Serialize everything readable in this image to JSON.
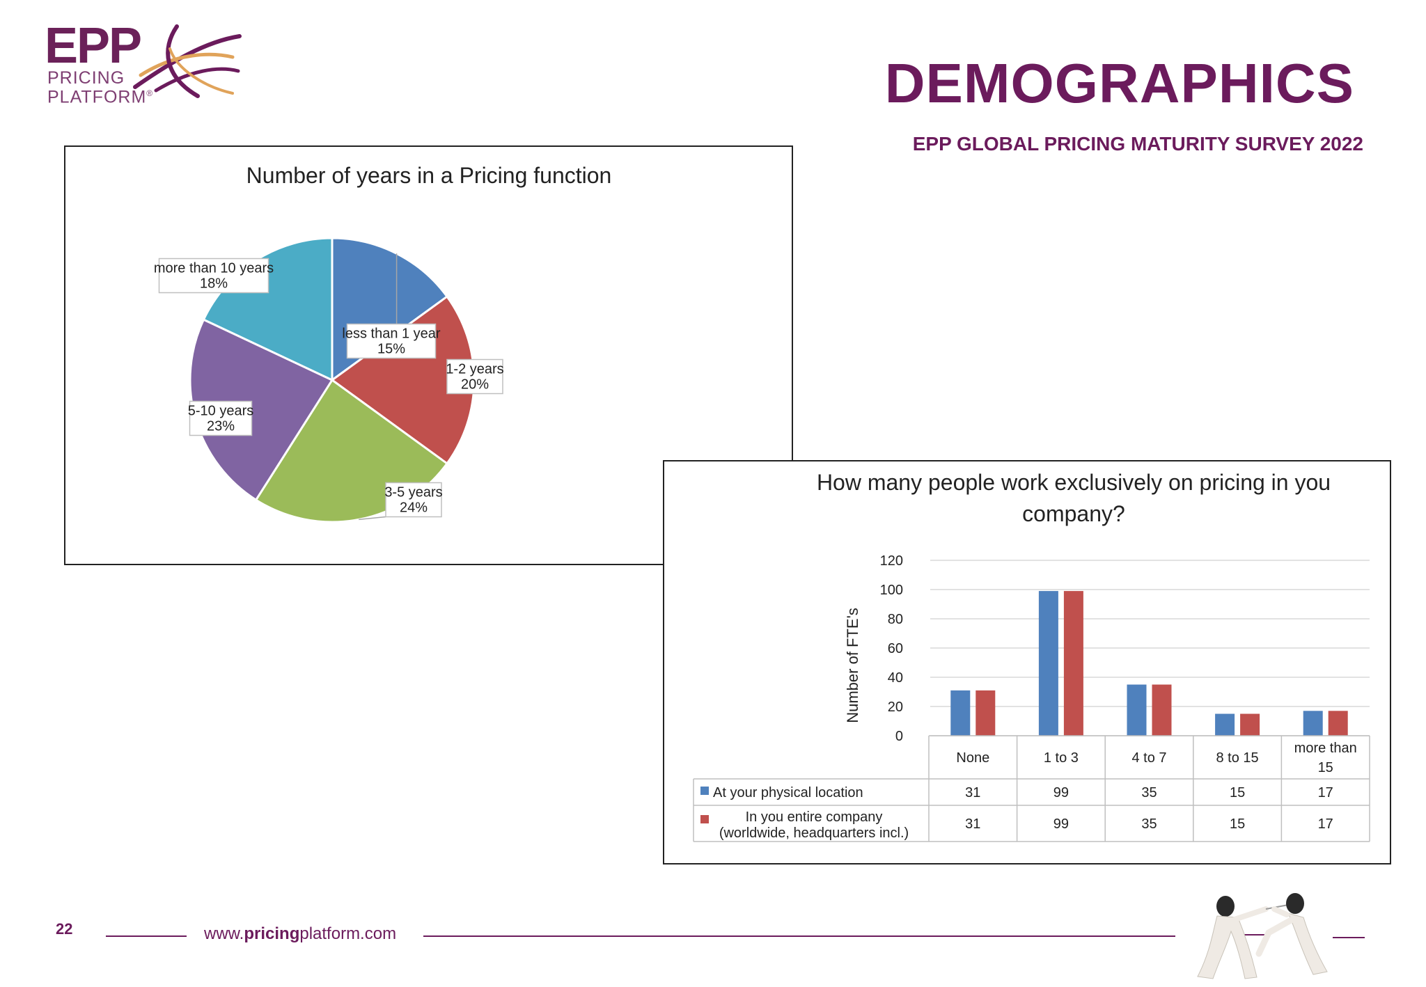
{
  "header": {
    "logo_text": "EPP",
    "logo_line1": "PRICING",
    "logo_line2": "PLATFORM",
    "logo_reg": "®",
    "title": "DEMOGRAPHICS",
    "subtitle": "EPP GLOBAL PRICING MATURITY SURVEY 2022"
  },
  "colors": {
    "brand": "#6b1b5c",
    "blue": "#4f81bd",
    "red": "#c0504d",
    "green": "#9bbb59",
    "purple": "#8064a2",
    "teal": "#4bacc6"
  },
  "chart_data": [
    {
      "type": "pie",
      "title": "Number of years in a Pricing function",
      "slices": [
        {
          "label": "less than 1 year",
          "value": 15,
          "display": "15%",
          "color": "#4f81bd"
        },
        {
          "label": "1-2 years",
          "value": 20,
          "display": "20%",
          "color": "#c0504d"
        },
        {
          "label": "3-5 years",
          "value": 24,
          "display": "24%",
          "color": "#9bbb59"
        },
        {
          "label": "5-10 years",
          "value": 23,
          "display": "23%",
          "color": "#8064a2"
        },
        {
          "label": "more than 10 years",
          "value": 18,
          "display": "18%",
          "color": "#4bacc6"
        }
      ]
    },
    {
      "type": "bar",
      "title": "How many people work exclusively on pricing in you company?",
      "ylabel": "Number of FTE's",
      "ylim": [
        0,
        120
      ],
      "yticks": [
        0,
        20,
        40,
        60,
        80,
        100,
        120
      ],
      "grid": true,
      "categories": [
        "None",
        "1 to 3",
        "4 to 7",
        "8 to 15",
        "more than 15"
      ],
      "series": [
        {
          "name": "At your physical location",
          "values": [
            31,
            99,
            35,
            15,
            17
          ],
          "color": "#4f81bd"
        },
        {
          "name": "In you entire company (worldwide, headquarters incl.)",
          "values": [
            31,
            99,
            35,
            15,
            17
          ],
          "color": "#c0504d"
        }
      ],
      "data_table": true
    }
  ],
  "footer": {
    "page_number": "22",
    "url_prefix": "www.",
    "url_bold": "pricing",
    "url_suffix": "platform.com"
  }
}
